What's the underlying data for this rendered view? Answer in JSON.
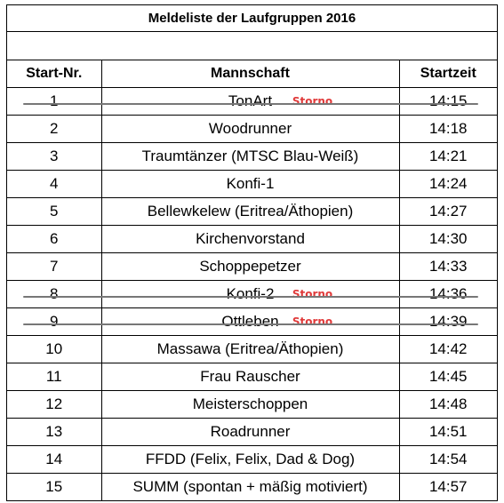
{
  "title": "Meldeliste der Laufgruppen 2016",
  "headers": {
    "nr": "Start-Nr.",
    "team": "Mannschaft",
    "time": "Startzeit"
  },
  "storno_label": "Storno",
  "storno_color": "#e03a3a",
  "rows": [
    {
      "nr": "1",
      "team": "TonArt",
      "time": "14:15",
      "cancelled": true
    },
    {
      "nr": "2",
      "team": "Woodrunner",
      "time": "14:18",
      "cancelled": false
    },
    {
      "nr": "3",
      "team": "Traumtänzer (MTSC Blau-Weiß)",
      "time": "14:21",
      "cancelled": false
    },
    {
      "nr": "4",
      "team": "Konfi-1",
      "time": "14:24",
      "cancelled": false
    },
    {
      "nr": "5",
      "team": "Bellewkelew (Eritrea/Äthopien)",
      "time": "14:27",
      "cancelled": false
    },
    {
      "nr": "6",
      "team": "Kirchenvorstand",
      "time": "14:30",
      "cancelled": false
    },
    {
      "nr": "7",
      "team": "Schoppepetzer",
      "time": "14:33",
      "cancelled": false
    },
    {
      "nr": "8",
      "team": "Konfi-2",
      "time": "14:36",
      "cancelled": true
    },
    {
      "nr": "9",
      "team": "Ottleben",
      "time": "14:39",
      "cancelled": true
    },
    {
      "nr": "10",
      "team": "Massawa (Eritrea/Äthopien)",
      "time": "14:42",
      "cancelled": false
    },
    {
      "nr": "11",
      "team": "Frau Rauscher",
      "time": "14:45",
      "cancelled": false
    },
    {
      "nr": "12",
      "team": "Meisterschoppen",
      "time": "14:48",
      "cancelled": false
    },
    {
      "nr": "13",
      "team": "Roadrunner",
      "time": "14:51",
      "cancelled": false
    },
    {
      "nr": "14",
      "team": "FFDD (Felix, Felix, Dad & Dog)",
      "time": "14:54",
      "cancelled": false
    },
    {
      "nr": "15",
      "team": "SUMM (spontan + mäßig motiviert)",
      "time": "14:57",
      "cancelled": false
    }
  ]
}
